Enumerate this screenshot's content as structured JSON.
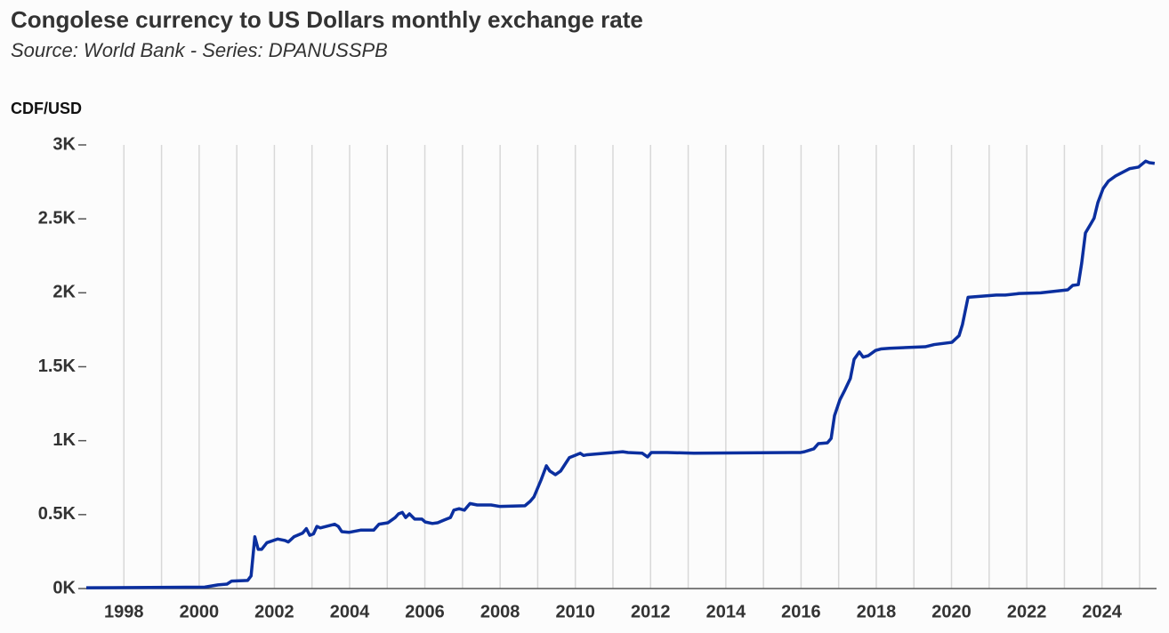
{
  "chart_data": {
    "type": "line",
    "title": "Congolese currency to US Dollars monthly exchange rate",
    "subtitle": "Source: World Bank - Series: DPANUSSPB",
    "y_label": "CDF/USD",
    "xlim": [
      1997,
      2025.45
    ],
    "xticks": [
      1998,
      2000,
      2002,
      2004,
      2006,
      2008,
      2010,
      2012,
      2014,
      2016,
      2018,
      2020,
      2022,
      2024
    ],
    "ylim": [
      0,
      3000
    ],
    "yticks": [
      {
        "value": 0,
        "label": "0K"
      },
      {
        "value": 500,
        "label": "0.5K"
      },
      {
        "value": 1000,
        "label": "1K"
      },
      {
        "value": 1500,
        "label": "1.5K"
      },
      {
        "value": 2000,
        "label": "2K"
      },
      {
        "value": 2500,
        "label": "2.5K"
      },
      {
        "value": 3000,
        "label": "3K"
      }
    ],
    "grid": true,
    "series": [
      {
        "name": "CDF/USD",
        "color": "#0b2f9f",
        "x": [
          1997.0,
          2000.15,
          2000.5,
          2000.74,
          2000.86,
          2001.29,
          2001.38,
          2001.48,
          2001.57,
          2001.66,
          2001.8,
          2002.09,
          2002.28,
          2002.37,
          2002.52,
          2002.75,
          2002.85,
          2002.94,
          2003.04,
          2003.13,
          2003.22,
          2003.6,
          2003.7,
          2003.79,
          2003.98,
          2004.29,
          2004.64,
          2004.78,
          2005.02,
          2005.21,
          2005.3,
          2005.4,
          2005.49,
          2005.59,
          2005.73,
          2005.92,
          2006.01,
          2006.2,
          2006.34,
          2006.53,
          2006.68,
          2006.77,
          2006.91,
          2007.05,
          2007.2,
          2007.39,
          2007.76,
          2008.0,
          2008.66,
          2008.8,
          2008.9,
          2009.09,
          2009.23,
          2009.32,
          2009.47,
          2009.61,
          2009.84,
          2009.99,
          2010.13,
          2010.22,
          2010.32,
          2011.26,
          2011.4,
          2011.78,
          2011.92,
          2012.02,
          2012.44,
          2013.15,
          2015.99,
          2016.09,
          2016.34,
          2016.46,
          2016.7,
          2016.8,
          2016.89,
          2017.03,
          2017.17,
          2017.31,
          2017.41,
          2017.55,
          2017.65,
          2017.79,
          2017.98,
          2018.12,
          2018.35,
          2019.3,
          2019.54,
          2020.01,
          2020.2,
          2020.29,
          2020.44,
          2021.19,
          2021.43,
          2021.8,
          2022.37,
          2023.09,
          2023.22,
          2023.37,
          2023.46,
          2023.56,
          2023.7,
          2023.79,
          2023.89,
          2024.03,
          2024.17,
          2024.36,
          2024.74,
          2024.97,
          2025.16,
          2025.26,
          2025.4
        ],
        "values": [
          5,
          10,
          25,
          30,
          50,
          55,
          85,
          350,
          265,
          265,
          310,
          335,
          325,
          315,
          350,
          375,
          405,
          360,
          370,
          420,
          410,
          435,
          420,
          385,
          380,
          395,
          395,
          435,
          445,
          480,
          505,
          515,
          480,
          505,
          470,
          470,
          450,
          440,
          445,
          465,
          480,
          530,
          540,
          530,
          575,
          565,
          565,
          555,
          560,
          590,
          620,
          735,
          830,
          795,
          770,
          795,
          885,
          900,
          915,
          900,
          905,
          925,
          920,
          915,
          890,
          920,
          920,
          915,
          920,
          925,
          945,
          980,
          985,
          1015,
          1170,
          1275,
          1345,
          1420,
          1550,
          1600,
          1565,
          1575,
          1610,
          1620,
          1625,
          1635,
          1650,
          1665,
          1710,
          1785,
          1970,
          1985,
          1985,
          1995,
          2000,
          2020,
          2050,
          2055,
          2200,
          2405,
          2465,
          2505,
          2610,
          2705,
          2755,
          2790,
          2840,
          2850,
          2890,
          2880,
          2875
        ]
      }
    ]
  }
}
